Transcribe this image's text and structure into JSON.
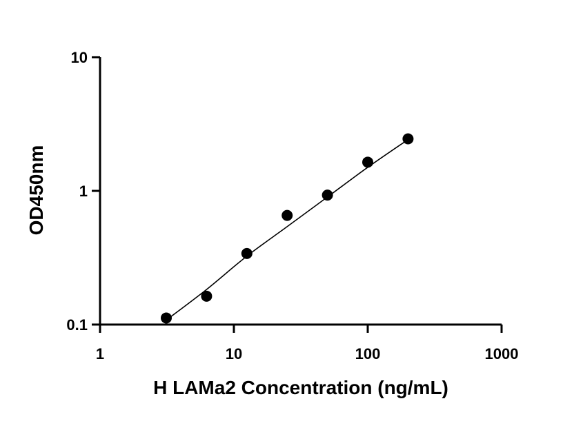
{
  "chart_data": {
    "type": "scatter",
    "title": "",
    "xlabel": "H LAMa2 Concentration (ng/mL)",
    "ylabel": "OD450nm",
    "x_scale": "log",
    "y_scale": "log",
    "xlim": [
      1,
      1000
    ],
    "ylim": [
      0.1,
      10
    ],
    "x_ticks": [
      1,
      10,
      100,
      1000
    ],
    "x_tick_labels": [
      "1",
      "10",
      "100",
      "1000"
    ],
    "y_ticks": [
      0.1,
      1,
      10
    ],
    "y_tick_labels": [
      "0.1",
      "1",
      "10"
    ],
    "grid": false,
    "legend": "none",
    "series": [
      {
        "marker": "filled-circle",
        "color": "#000000",
        "x": [
          3.125,
          6.25,
          12.5,
          25,
          50,
          100,
          200
        ],
        "y": [
          0.112,
          0.163,
          0.34,
          0.655,
          0.93,
          1.64,
          2.45
        ]
      }
    ],
    "fit_curve": {
      "style": "solid-line",
      "color": "#000000",
      "x": [
        3.125,
        6.25,
        12.5,
        25,
        50,
        100,
        200
      ],
      "y": [
        0.108,
        0.183,
        0.325,
        0.54,
        0.9,
        1.5,
        2.42
      ]
    }
  }
}
